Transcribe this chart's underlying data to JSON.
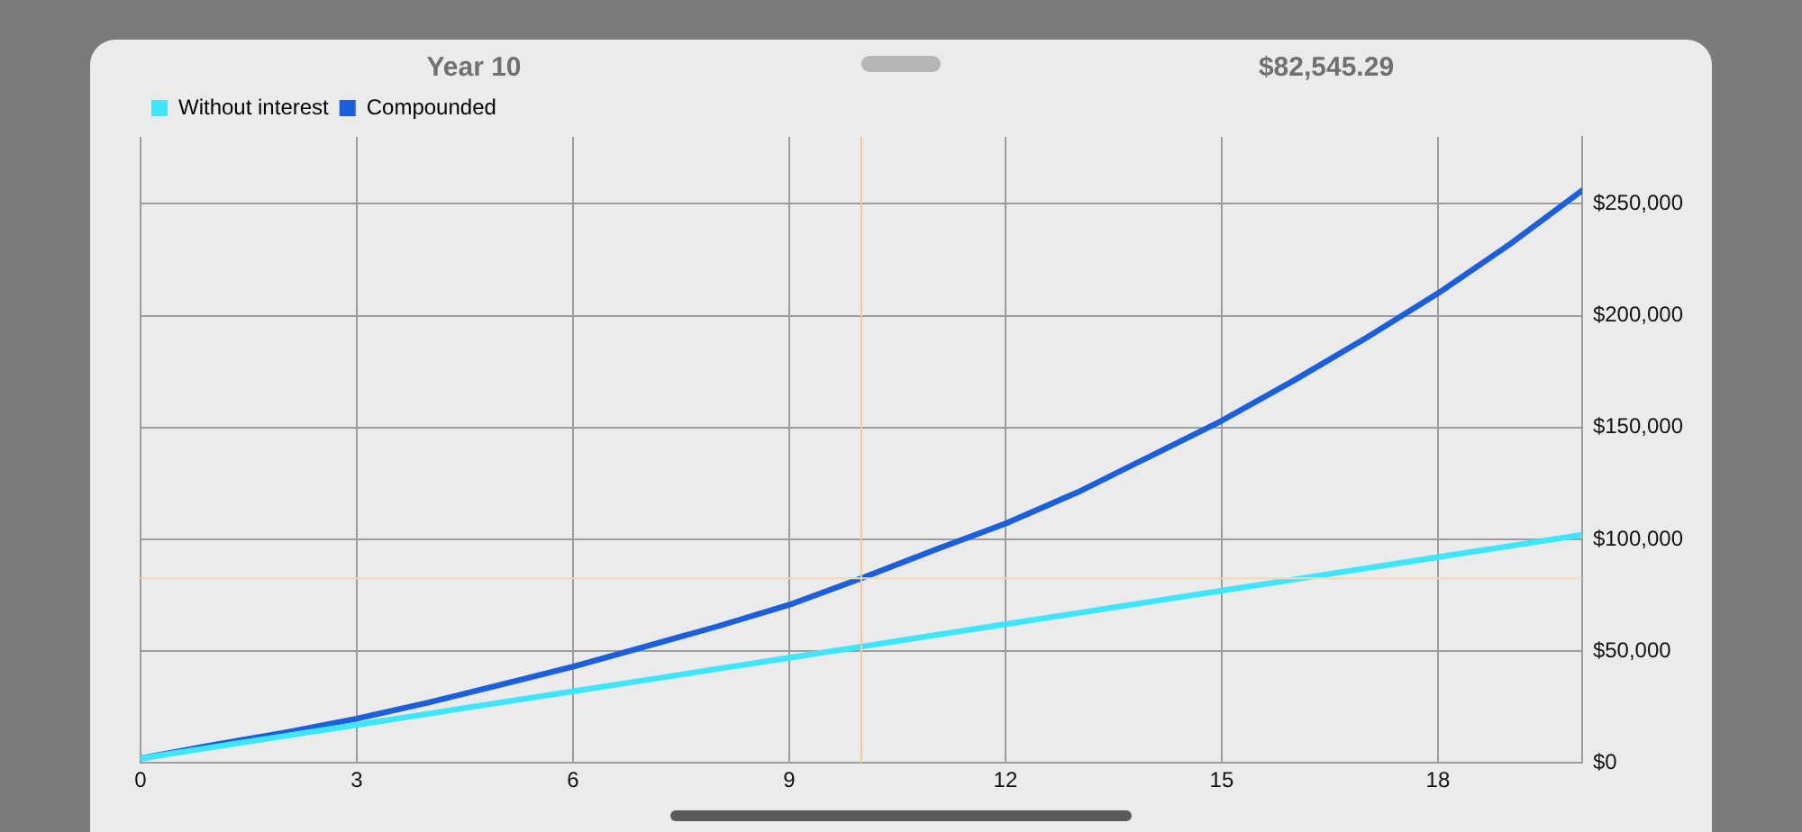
{
  "chart_data": {
    "type": "line",
    "x": [
      0,
      1,
      2,
      3,
      4,
      5,
      6,
      7,
      8,
      9,
      10,
      11,
      12,
      13,
      14,
      15,
      16,
      17,
      18,
      19,
      20
    ],
    "series": [
      {
        "name": "Without interest",
        "color": "#3de6fb",
        "values": [
          2000,
          7000,
          12000,
          17000,
          22000,
          27000,
          32000,
          37000,
          42000,
          47000,
          52000,
          57000,
          62000,
          67000,
          72000,
          77000,
          82000,
          87000,
          92000,
          97000,
          102000
        ]
      },
      {
        "name": "Compounded",
        "color": "#1b5fdc",
        "values": [
          2000,
          8000,
          13500,
          19800,
          27000,
          35000,
          43000,
          52000,
          61000,
          70700,
          82500,
          95000,
          107000,
          121000,
          137000,
          153000,
          171000,
          190000,
          210000,
          232000,
          256000
        ]
      }
    ],
    "xlim": [
      0,
      20
    ],
    "xticks": [
      0,
      3,
      6,
      9,
      12,
      15,
      18
    ],
    "ylim": [
      0,
      280000
    ],
    "yticks": [
      {
        "value": 0,
        "label": "$0"
      },
      {
        "value": 50000,
        "label": "$50,000"
      },
      {
        "value": 100000,
        "label": "$100,000"
      },
      {
        "value": 150000,
        "label": "$150,000"
      },
      {
        "value": 200000,
        "label": "$200,000"
      },
      {
        "value": 250000,
        "label": "$250,000"
      }
    ],
    "ref_lines": [
      {
        "axis": "x",
        "value": 10,
        "color": "#f7c98a"
      },
      {
        "axis": "y",
        "value": 82500,
        "color": "#f7d7b0"
      }
    ],
    "annotations": [
      "Year 10",
      "$82,545.29"
    ],
    "grid": true,
    "legend": "top left",
    "marker": "none",
    "line_style": "solid"
  }
}
